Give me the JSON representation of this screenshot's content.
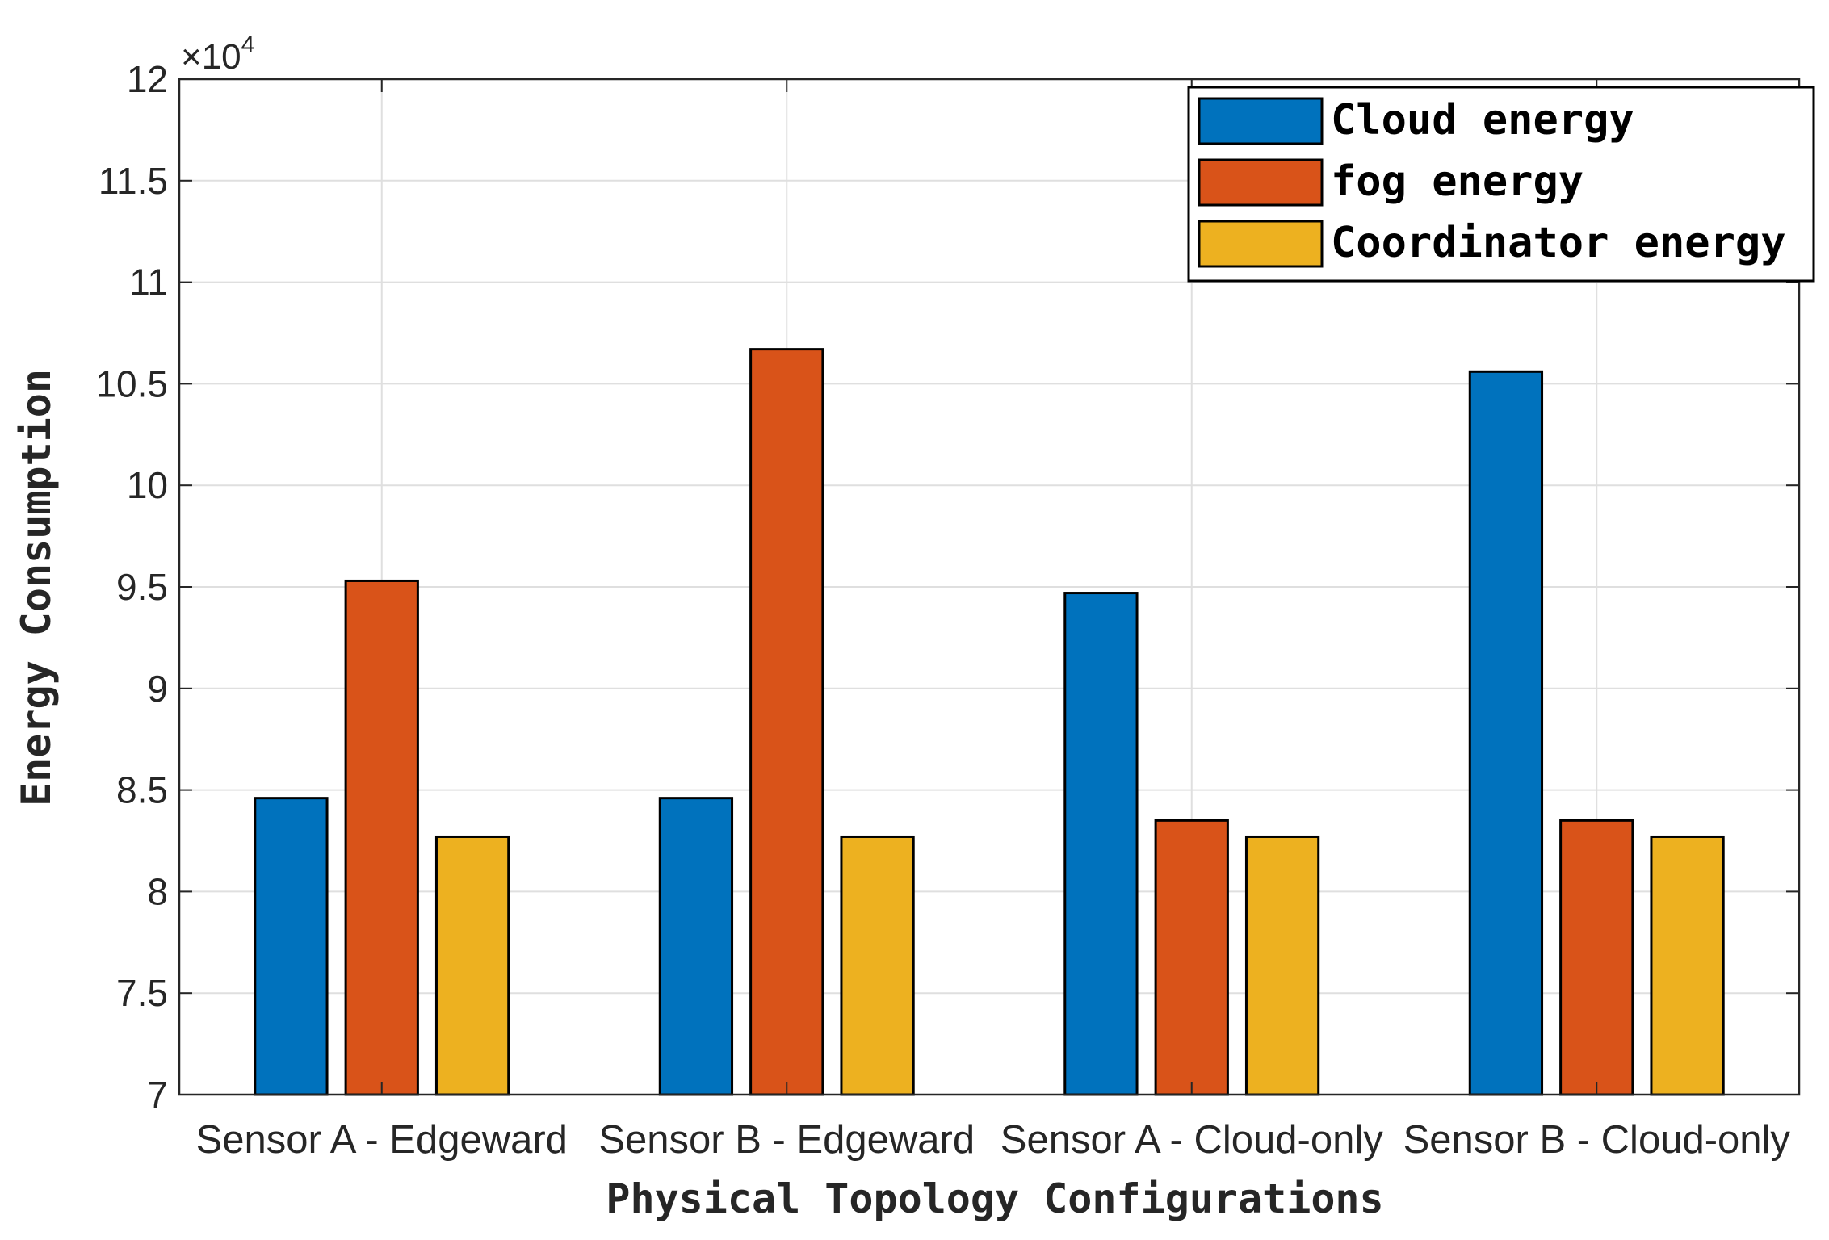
{
  "chart_data": {
    "type": "bar",
    "categories": [
      "Sensor A - Edgeward",
      "Sensor B - Edgeward",
      "Sensor A - Cloud-only",
      "Sensor B - Cloud-only"
    ],
    "series": [
      {
        "name": "Cloud energy",
        "color": "#0072BD",
        "values": [
          84600,
          84600,
          94700,
          105600
        ]
      },
      {
        "name": "fog energy",
        "color": "#D95319",
        "values": [
          95300,
          106700,
          83500,
          83500
        ]
      },
      {
        "name": "Coordinator energy",
        "color": "#EDB120",
        "values": [
          82700,
          82700,
          82700,
          82700
        ]
      }
    ],
    "xlabel": "Physical Topology Configurations",
    "ylabel": "Energy Consumption",
    "ylim": [
      70000,
      120000
    ],
    "yticks": [
      "7",
      "7.5",
      "8",
      "8.5",
      "9",
      "9.5",
      "10",
      "10.5",
      "11",
      "11.5",
      "12"
    ],
    "y_exponent_label": "×10",
    "y_exponent_power": "4",
    "grid": true,
    "legend_position": "top-right"
  }
}
